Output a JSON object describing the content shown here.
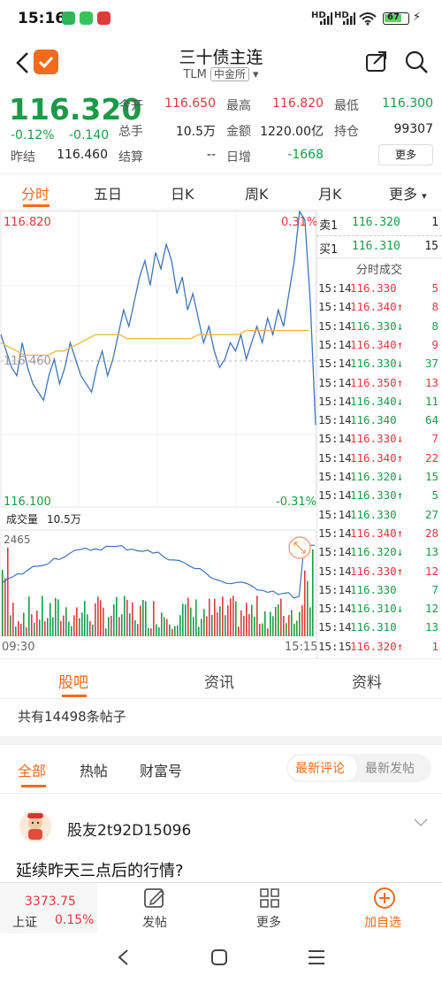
{
  "status": {
    "time": "15:16",
    "battery": "67",
    "net1": "HD",
    "net2": "HD"
  },
  "header": {
    "title": "三十债主连",
    "code": "TLM",
    "exchange": "中金所"
  },
  "quote": {
    "price": "116.320",
    "change_pct": "-0.12%",
    "change": "-0.140",
    "prev_label": "昨结",
    "prev": "116.460",
    "open_label": "今开",
    "open": "116.650",
    "high_label": "最高",
    "high": "116.820",
    "low_label": "最低",
    "low": "116.300",
    "vol_label": "总手",
    "vol": "10.5万",
    "amount_label": "金额",
    "amount": "1220.00亿",
    "oi_label": "持仓",
    "oi": "99307",
    "settle_label": "结算",
    "settle": "--",
    "daily_label": "日增",
    "daily": "-1668",
    "more": "更多"
  },
  "ktabs": [
    "分时",
    "五日",
    "日K",
    "周K",
    "月K",
    "更多"
  ],
  "chart": {
    "top_price": "116.820",
    "top_pct": "0.31%",
    "mid_price": "116.460",
    "bottom_price": "116.100",
    "bottom_pct": "-0.31%",
    "vol_label": "成交量",
    "vol_value": "10.5万",
    "vol_max": "2465",
    "time_start": "09:30",
    "time_end": "15:15"
  },
  "chart_data": {
    "type": "line",
    "title": "",
    "x_start": "09:30",
    "x_end": "15:15",
    "ylim": [
      116.1,
      116.82
    ],
    "baseline": 116.46,
    "series": [
      {
        "name": "",
        "values": [
          116.52,
          116.48,
          116.44,
          116.42,
          116.5,
          116.44,
          116.4,
          116.38,
          116.36,
          116.42,
          116.46,
          116.4,
          116.44,
          116.5,
          116.46,
          116.42,
          116.4,
          116.38,
          116.44,
          116.48,
          116.42,
          116.46,
          116.52,
          116.58,
          116.54,
          116.6,
          116.66,
          116.7,
          116.64,
          116.72,
          116.68,
          116.74,
          116.7,
          116.62,
          116.66,
          116.58,
          116.62,
          116.56,
          116.5,
          116.54,
          116.48,
          116.44,
          116.46,
          116.5,
          116.48,
          116.52,
          116.46,
          116.5,
          116.54,
          116.5,
          116.56,
          116.52,
          116.58,
          116.54,
          116.62,
          116.7,
          116.82,
          116.8,
          116.6,
          116.3
        ]
      },
      {
        "name": "",
        "values": [
          116.5,
          116.49,
          116.48,
          116.47,
          116.47,
          116.47,
          116.47,
          116.48,
          116.48,
          116.49,
          116.5,
          116.51,
          116.52,
          116.52,
          116.52,
          116.52,
          116.51,
          116.51,
          116.51,
          116.51,
          116.51,
          116.51,
          116.51,
          116.51,
          116.51,
          116.52,
          116.52,
          116.52,
          116.52,
          116.52,
          116.52,
          116.53,
          116.53,
          116.53,
          116.53,
          116.53,
          116.53,
          116.53,
          116.53,
          116.53
        ]
      }
    ],
    "volume_max": 2465
  },
  "order_book": {
    "sell_label": "卖1",
    "sell_price": "116.320",
    "sell_vol": "1",
    "buy_label": "买1",
    "buy_price": "116.310",
    "buy_vol": "15",
    "ticks_title": "分时成交"
  },
  "ticks": [
    {
      "time": "15:14",
      "price": "116.330",
      "arrow": "",
      "vol": "5",
      "color": "red"
    },
    {
      "time": "15:14",
      "price": "116.340",
      "arrow": "↑",
      "vol": "8",
      "color": "red"
    },
    {
      "time": "15:14",
      "price": "116.330",
      "arrow": "↓",
      "vol": "8",
      "color": "green"
    },
    {
      "time": "15:14",
      "price": "116.340",
      "arrow": "↑",
      "vol": "9",
      "color": "red"
    },
    {
      "time": "15:14",
      "price": "116.330",
      "arrow": "↓",
      "vol": "37",
      "color": "green"
    },
    {
      "time": "15:14",
      "price": "116.350",
      "arrow": "↑",
      "vol": "13",
      "color": "red"
    },
    {
      "time": "15:14",
      "price": "116.340",
      "arrow": "↓",
      "vol": "11",
      "color": "green"
    },
    {
      "time": "15:14",
      "price": "116.340",
      "arrow": "",
      "vol": "64",
      "color": "green"
    },
    {
      "time": "15:14",
      "price": "116.330",
      "arrow": "↓",
      "vol": "7",
      "color": "red"
    },
    {
      "time": "15:14",
      "price": "116.340",
      "arrow": "↑",
      "vol": "22",
      "color": "red"
    },
    {
      "time": "15:14",
      "price": "116.320",
      "arrow": "↓",
      "vol": "15",
      "color": "green"
    },
    {
      "time": "15:14",
      "price": "116.330",
      "arrow": "↑",
      "vol": "5",
      "color": "green"
    },
    {
      "time": "15:14",
      "price": "116.330",
      "arrow": "",
      "vol": "27",
      "color": "green"
    },
    {
      "time": "15:14",
      "price": "116.340",
      "arrow": "↑",
      "vol": "28",
      "color": "red"
    },
    {
      "time": "15:14",
      "price": "116.320",
      "arrow": "↓",
      "vol": "13",
      "color": "green"
    },
    {
      "time": "15:14",
      "price": "116.330",
      "arrow": "↑",
      "vol": "12",
      "color": "red"
    },
    {
      "time": "15:14",
      "price": "116.330",
      "arrow": "",
      "vol": "7",
      "color": "green"
    },
    {
      "time": "15:14",
      "price": "116.310",
      "arrow": "↓",
      "vol": "12",
      "color": "green"
    },
    {
      "time": "15:14",
      "price": "116.310",
      "arrow": "",
      "vol": "13",
      "color": "green"
    },
    {
      "time": "15:15",
      "price": "116.320",
      "arrow": "↑",
      "vol": "1",
      "color": "red"
    }
  ],
  "segments": [
    "股吧",
    "资讯",
    "资料"
  ],
  "posts_count": "共有14498条帖子",
  "feed_tabs": [
    "全部",
    "热帖",
    "财富号"
  ],
  "sort_options": [
    "最新评论",
    "最新发帖"
  ],
  "post": {
    "user": "股友2t92D15096",
    "text": "延续昨天三点后的行情?"
  },
  "bottombar": {
    "index_value": "3373.75",
    "index_name": "上证",
    "index_pct": "0.15%",
    "post_label": "发帖",
    "more_label": "更多",
    "add_label": "加自选"
  },
  "colors": {
    "red": "#e0393e",
    "green": "#1a9b47",
    "accent": "#f26b1d",
    "line": "#3f74b8",
    "avg": "#e8b84a"
  }
}
